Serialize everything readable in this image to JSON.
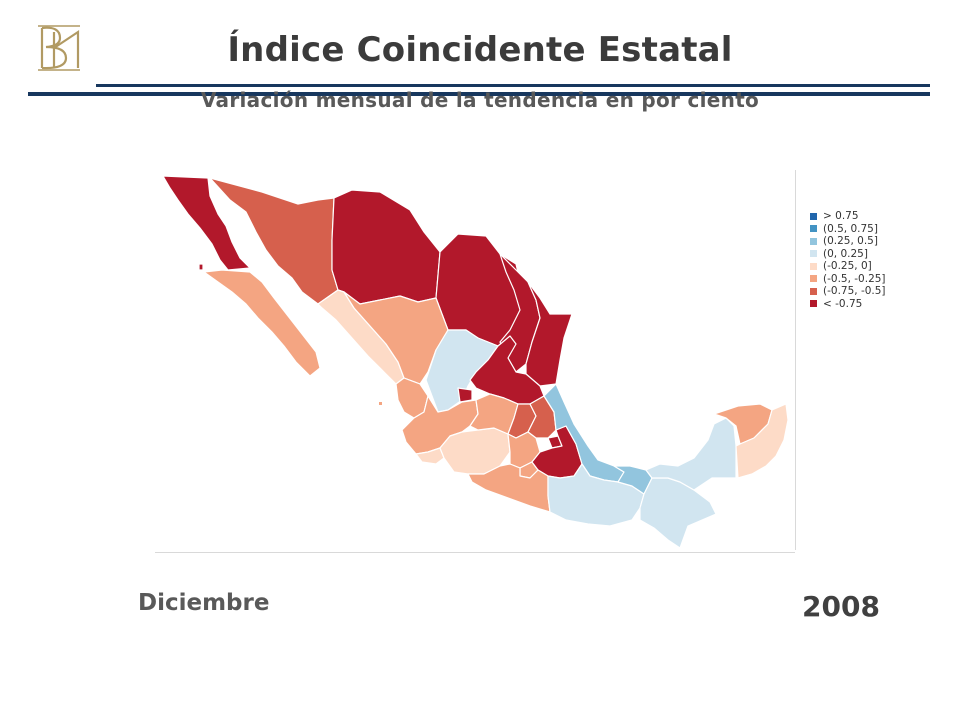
{
  "header": {
    "title": "Índice Coincidente Estatal",
    "subtitle": "Variación mensual de la tendencia en por ciento"
  },
  "logo": {
    "icon": "banxico-monogram-logo",
    "color": "#b19a63"
  },
  "legend": {
    "items": [
      {
        "label": "> 0.75",
        "color": "#2166ac"
      },
      {
        "label": "(0.5, 0.75]",
        "color": "#4393c3"
      },
      {
        "label": "(0.25, 0.5]",
        "color": "#92c5de"
      },
      {
        "label": "(0, 0.25]",
        "color": "#d1e5f0"
      },
      {
        "label": "(-0.25, 0]",
        "color": "#fddbc7"
      },
      {
        "label": "(-0.5, -0.25]",
        "color": "#f4a582"
      },
      {
        "label": "(-0.75, -0.5]",
        "color": "#d6604d"
      },
      {
        "label": "< -0.75",
        "color": "#b2182b"
      }
    ]
  },
  "footer": {
    "month": "Diciembre",
    "year": "2008"
  },
  "map": {
    "states": [
      {
        "id": "baja-california",
        "class": 7
      },
      {
        "id": "baja-california-sur",
        "class": 5
      },
      {
        "id": "sonora",
        "class": 6
      },
      {
        "id": "chihuahua",
        "class": 7
      },
      {
        "id": "coahuila",
        "class": 7
      },
      {
        "id": "nuevo-leon",
        "class": 7
      },
      {
        "id": "tamaulipas",
        "class": 7
      },
      {
        "id": "sinaloa",
        "class": 4
      },
      {
        "id": "durango",
        "class": 5
      },
      {
        "id": "zacatecas",
        "class": 3
      },
      {
        "id": "san-luis-potosi",
        "class": 7
      },
      {
        "id": "nayarit",
        "class": 5
      },
      {
        "id": "aguascalientes",
        "class": 7
      },
      {
        "id": "jalisco",
        "class": 5
      },
      {
        "id": "colima",
        "class": 4
      },
      {
        "id": "michoacan",
        "class": 4
      },
      {
        "id": "guanajuato",
        "class": 5
      },
      {
        "id": "queretaro",
        "class": 6
      },
      {
        "id": "hidalgo",
        "class": 6
      },
      {
        "id": "estado-de-mexico",
        "class": 5
      },
      {
        "id": "tlaxcala",
        "class": 7
      },
      {
        "id": "morelos",
        "class": 5
      },
      {
        "id": "puebla",
        "class": 7
      },
      {
        "id": "veracruz",
        "class": 2
      },
      {
        "id": "guerrero",
        "class": 5
      },
      {
        "id": "oaxaca",
        "class": 3
      },
      {
        "id": "tabasco",
        "class": 2
      },
      {
        "id": "chiapas",
        "class": 3
      },
      {
        "id": "campeche",
        "class": 3
      },
      {
        "id": "yucatan",
        "class": 5
      },
      {
        "id": "quintana-roo",
        "class": 4
      }
    ]
  }
}
